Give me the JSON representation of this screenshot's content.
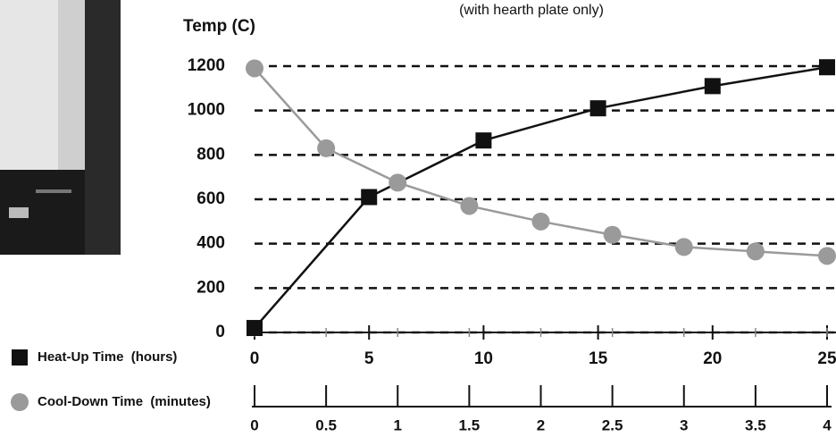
{
  "chart_data": {
    "type": "line",
    "subtitle": "(with hearth plate only)",
    "y_label": "Temp (C)",
    "ylim": [
      0,
      1200
    ],
    "yticks": [
      0,
      200,
      400,
      600,
      800,
      1000,
      1200
    ],
    "xlim": [
      0,
      25
    ],
    "xticks": [
      0,
      5,
      10,
      15,
      20,
      25
    ],
    "x2lim": [
      0,
      4
    ],
    "x2ticks": [
      0,
      0.5,
      1,
      1.5,
      2,
      2.5,
      3,
      3.5,
      4
    ],
    "grid": true,
    "series": [
      {
        "name": "Heat-Up Time  (hours)",
        "color": "#111111",
        "marker": "square",
        "axis": "x",
        "x": [
          0,
          5,
          10,
          15,
          20,
          25
        ],
        "values": [
          20,
          610,
          865,
          1010,
          1110,
          1195
        ]
      },
      {
        "name": "Cool-Down Time  (minutes)",
        "color": "#9a9a9a",
        "marker": "circle",
        "axis": "x2",
        "x": [
          0,
          0.5,
          1,
          1.5,
          2,
          2.5,
          3,
          3.5,
          4
        ],
        "values": [
          1190,
          830,
          675,
          570,
          500,
          440,
          385,
          365,
          345
        ]
      }
    ]
  }
}
